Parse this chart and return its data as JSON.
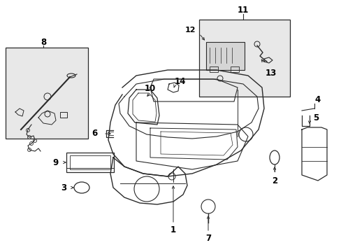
{
  "background_color": "#ffffff",
  "line_color": "#2a2a2a",
  "label_color": "#000000",
  "fig_width": 4.89,
  "fig_height": 3.6,
  "dpi": 100,
  "gray_fill": "#e8e8e8"
}
